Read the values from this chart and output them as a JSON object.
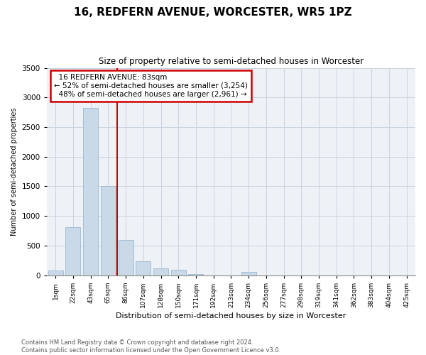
{
  "title": "16, REDFERN AVENUE, WORCESTER, WR5 1PZ",
  "subtitle": "Size of property relative to semi-detached houses in Worcester",
  "xlabel": "Distribution of semi-detached houses by size in Worcester",
  "ylabel": "Number of semi-detached properties",
  "footnote": "Contains HM Land Registry data © Crown copyright and database right 2024.\nContains public sector information licensed under the Open Government Licence v3.0.",
  "categories": [
    "1sqm",
    "22sqm",
    "43sqm",
    "65sqm",
    "86sqm",
    "107sqm",
    "128sqm",
    "150sqm",
    "171sqm",
    "192sqm",
    "213sqm",
    "234sqm",
    "256sqm",
    "277sqm",
    "298sqm",
    "319sqm",
    "341sqm",
    "362sqm",
    "383sqm",
    "404sqm",
    "425sqm"
  ],
  "values": [
    75,
    810,
    2820,
    1510,
    590,
    240,
    110,
    90,
    20,
    0,
    0,
    50,
    0,
    0,
    0,
    0,
    0,
    0,
    0,
    0,
    0
  ],
  "property_label": "16 REDFERN AVENUE: 83sqm",
  "pct_smaller": 52,
  "pct_larger": 48,
  "count_smaller": 3254,
  "count_larger": 2961,
  "bar_color": "#c9d9e8",
  "bar_edge_color": "#9ab8d0",
  "marker_line_color": "#cc0000",
  "annotation_box_edge_color": "#cc0000",
  "ylim": [
    0,
    3500
  ],
  "yticks": [
    0,
    500,
    1000,
    1500,
    2000,
    2500,
    3000,
    3500
  ],
  "grid_color": "#c8d4e0",
  "background_color": "#eef2f7",
  "marker_bar_index": 3
}
